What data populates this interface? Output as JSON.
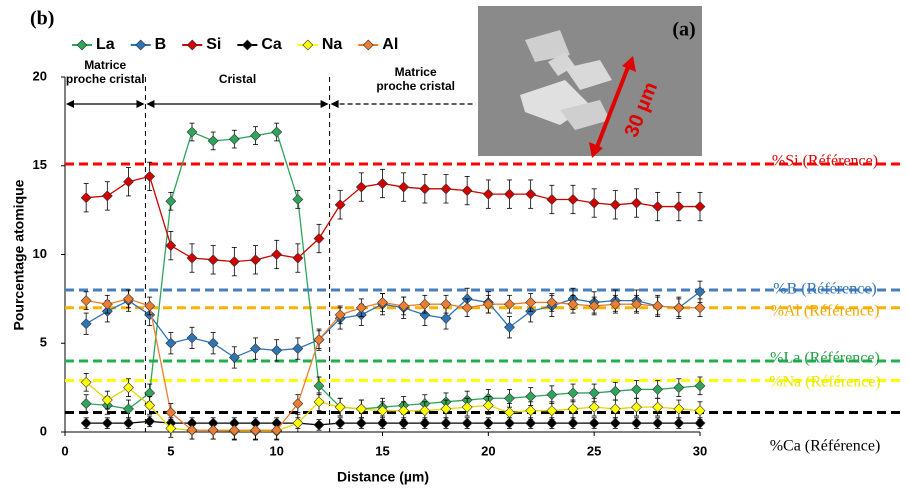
{
  "chart_data": {
    "type": "line",
    "panel_label": "(b)",
    "x_label": "Distance (µm)",
    "y_label": "Pourcentage atomique",
    "xlim": [
      0,
      30
    ],
    "xticks": [
      0,
      5,
      10,
      15,
      20,
      25,
      30
    ],
    "ylim": [
      0,
      20
    ],
    "yticks": [
      0,
      5,
      10,
      15,
      20
    ],
    "x": [
      1,
      2,
      3,
      4,
      5,
      6,
      7,
      8,
      9,
      10,
      11,
      12,
      13,
      14,
      15,
      16,
      17,
      18,
      19,
      20,
      21,
      22,
      23,
      24,
      25,
      26,
      27,
      28,
      29,
      30
    ],
    "series": [
      {
        "name": "La",
        "color": "#2ea55a",
        "error": 0.5,
        "values": [
          1.6,
          1.5,
          1.3,
          2.2,
          13.0,
          16.9,
          16.4,
          16.5,
          16.7,
          16.9,
          13.1,
          2.6,
          1.4,
          1.3,
          1.4,
          1.5,
          1.6,
          1.7,
          1.8,
          1.9,
          1.9,
          2.0,
          2.1,
          2.2,
          2.2,
          2.3,
          2.4,
          2.4,
          2.5,
          2.6
        ]
      },
      {
        "name": "B",
        "color": "#2e75b6",
        "error": 0.6,
        "values": [
          6.1,
          6.8,
          7.4,
          6.6,
          5.0,
          5.3,
          5.0,
          4.2,
          4.7,
          4.6,
          4.7,
          5.2,
          6.4,
          6.6,
          7.2,
          7.0,
          6.6,
          6.4,
          7.5,
          7.3,
          5.9,
          6.8,
          7.1,
          7.5,
          7.3,
          7.4,
          7.4,
          7.1,
          7.0,
          7.9
        ]
      },
      {
        "name": "Si",
        "color": "#d00000",
        "error": 0.8,
        "values": [
          13.2,
          13.3,
          14.1,
          14.4,
          10.5,
          9.8,
          9.7,
          9.6,
          9.7,
          10.0,
          9.8,
          10.9,
          12.8,
          13.8,
          14.0,
          13.8,
          13.7,
          13.7,
          13.6,
          13.4,
          13.4,
          13.4,
          13.1,
          13.1,
          12.9,
          12.8,
          12.9,
          12.7,
          12.7,
          12.7
        ]
      },
      {
        "name": "Ca",
        "color": "#000000",
        "error": 0.3,
        "values": [
          0.5,
          0.5,
          0.5,
          0.6,
          0.5,
          0.5,
          0.5,
          0.5,
          0.5,
          0.5,
          0.5,
          0.4,
          0.5,
          0.5,
          0.5,
          0.5,
          0.5,
          0.5,
          0.5,
          0.5,
          0.5,
          0.5,
          0.5,
          0.5,
          0.5,
          0.5,
          0.5,
          0.5,
          0.5,
          0.5
        ]
      },
      {
        "name": "Na",
        "color": "#ffff00",
        "error": 0.5,
        "values": [
          2.8,
          1.8,
          2.5,
          1.5,
          0.2,
          0.1,
          0.1,
          0.05,
          0.05,
          0.05,
          0.5,
          1.7,
          1.4,
          1.3,
          1.2,
          1.2,
          1.2,
          1.3,
          1.4,
          1.5,
          1.1,
          1.2,
          1.2,
          1.3,
          1.4,
          1.3,
          1.4,
          1.4,
          1.3,
          1.2
        ]
      },
      {
        "name": "Al",
        "color": "#ed7d31",
        "error": 0.5,
        "values": [
          7.4,
          7.2,
          7.5,
          7.1,
          1.1,
          0.1,
          0.1,
          0.1,
          0.1,
          0.1,
          1.6,
          5.2,
          6.6,
          7.0,
          7.3,
          7.1,
          7.2,
          7.2,
          7.0,
          7.2,
          7.2,
          7.3,
          7.3,
          7.2,
          7.1,
          7.2,
          7.2,
          7.1,
          7.0,
          7.0
        ]
      }
    ],
    "reference_lines": [
      {
        "label": "%Si (Référence)",
        "value": 15.1,
        "color": "#ff0000",
        "text_color": "#e00000"
      },
      {
        "label": "%B (Référence)",
        "value": 8.0,
        "color": "#4a7ebb",
        "text_color": "#2e75b6"
      },
      {
        "label": "%Al (Référence)",
        "value": 7.0,
        "color": "#ffb000",
        "text_color": "#f0a800"
      },
      {
        "label": "%La (Référence)",
        "value": 4.0,
        "color": "#22b04a",
        "text_color": "#22a04a"
      },
      {
        "label": "%Na (Référence)",
        "value": 2.9,
        "color": "#ffff00",
        "text_color": "#e8e800"
      },
      {
        "label": "%Ca (Référence)",
        "value": 1.1,
        "color": "#000000",
        "text_color": "#000000"
      }
    ],
    "vlines": [
      3.8,
      12.5
    ],
    "regions": [
      [
        "Matrice",
        "proche cristal"
      ],
      [
        "Cristal"
      ],
      [
        "Matrice",
        "proche cristal"
      ]
    ],
    "inset": {
      "label": "(a)",
      "scale": "30 µm"
    }
  }
}
